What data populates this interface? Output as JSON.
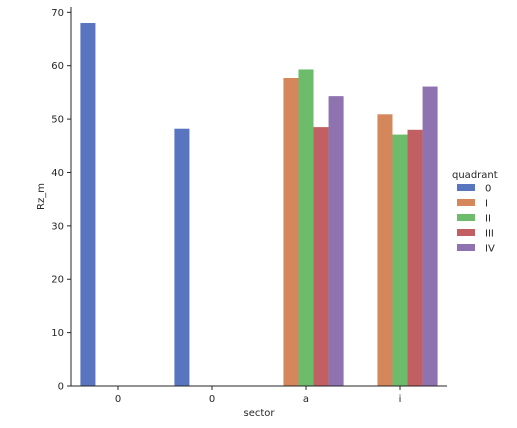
{
  "chart_data": {
    "type": "bar",
    "xlabel": "sector",
    "ylabel": "Rz_m",
    "ylim": [
      0,
      71
    ],
    "yticks": [
      0,
      10,
      20,
      30,
      40,
      50,
      60,
      70
    ],
    "grid": false,
    "legend_position": "right",
    "legend_title": "quadrant",
    "categories": [
      "0",
      "0",
      "a",
      "i"
    ],
    "series": [
      {
        "name": "0",
        "color": "#5975c0",
        "values": [
          68.0,
          48.2,
          null,
          null
        ]
      },
      {
        "name": "I",
        "color": "#d5875b",
        "values": [
          null,
          null,
          57.7,
          50.9
        ]
      },
      {
        "name": "II",
        "color": "#6cbc6c",
        "values": [
          null,
          null,
          59.3,
          47.1
        ]
      },
      {
        "name": "III",
        "color": "#c15f62",
        "values": [
          null,
          null,
          48.5,
          48.0
        ]
      },
      {
        "name": "IV",
        "color": "#8f73b0",
        "values": [
          null,
          null,
          54.3,
          56.1
        ]
      }
    ]
  }
}
